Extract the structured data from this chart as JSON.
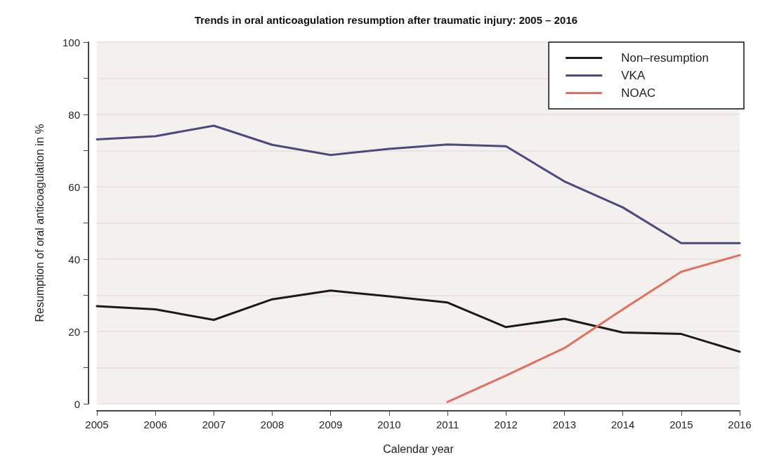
{
  "chart_data": {
    "type": "line",
    "title": "Trends in oral anticoagulation resumption after traumatic injury: 2005 – 2016",
    "xlabel": "Calendar year",
    "ylabel": "Resumption of oral anticoagulation in %",
    "x": [
      2005,
      2006,
      2007,
      2008,
      2009,
      2010,
      2011,
      2012,
      2013,
      2014,
      2015,
      2016
    ],
    "series": [
      {
        "name": "Non–resumption",
        "color": "#1a1a1a",
        "values": [
          27,
          26.1,
          23.2,
          28.9,
          31.3,
          29.7,
          28,
          21.2,
          23.5,
          19.7,
          19.3,
          14.4
        ]
      },
      {
        "name": "VKA",
        "color": "#4b4a7e",
        "values": [
          73.1,
          74,
          76.9,
          71.6,
          68.8,
          70.5,
          71.7,
          71.2,
          61.5,
          54.3,
          44.4,
          44.4
        ]
      },
      {
        "name": "NOAC",
        "color": "#e0705f",
        "values": [
          null,
          null,
          null,
          null,
          null,
          null,
          0.5,
          7.8,
          15.4,
          26.1,
          36.5,
          41.1
        ]
      }
    ],
    "xlim": [
      2005,
      2016
    ],
    "xticks": [
      2005,
      2006,
      2007,
      2008,
      2009,
      2010,
      2011,
      2012,
      2013,
      2014,
      2015,
      2016
    ],
    "ylim": [
      0,
      100
    ],
    "yticks": [
      0,
      {
        "value": 10,
        "label": null
      },
      20,
      {
        "value": 30,
        "label": null
      },
      40,
      {
        "value": 50,
        "label": null
      },
      60,
      {
        "value": 70,
        "label": null
      },
      80,
      {
        "value": 90,
        "label": null
      },
      100
    ],
    "grid": "y",
    "legend": "top right",
    "marker": "none",
    "line_style": "solid"
  }
}
